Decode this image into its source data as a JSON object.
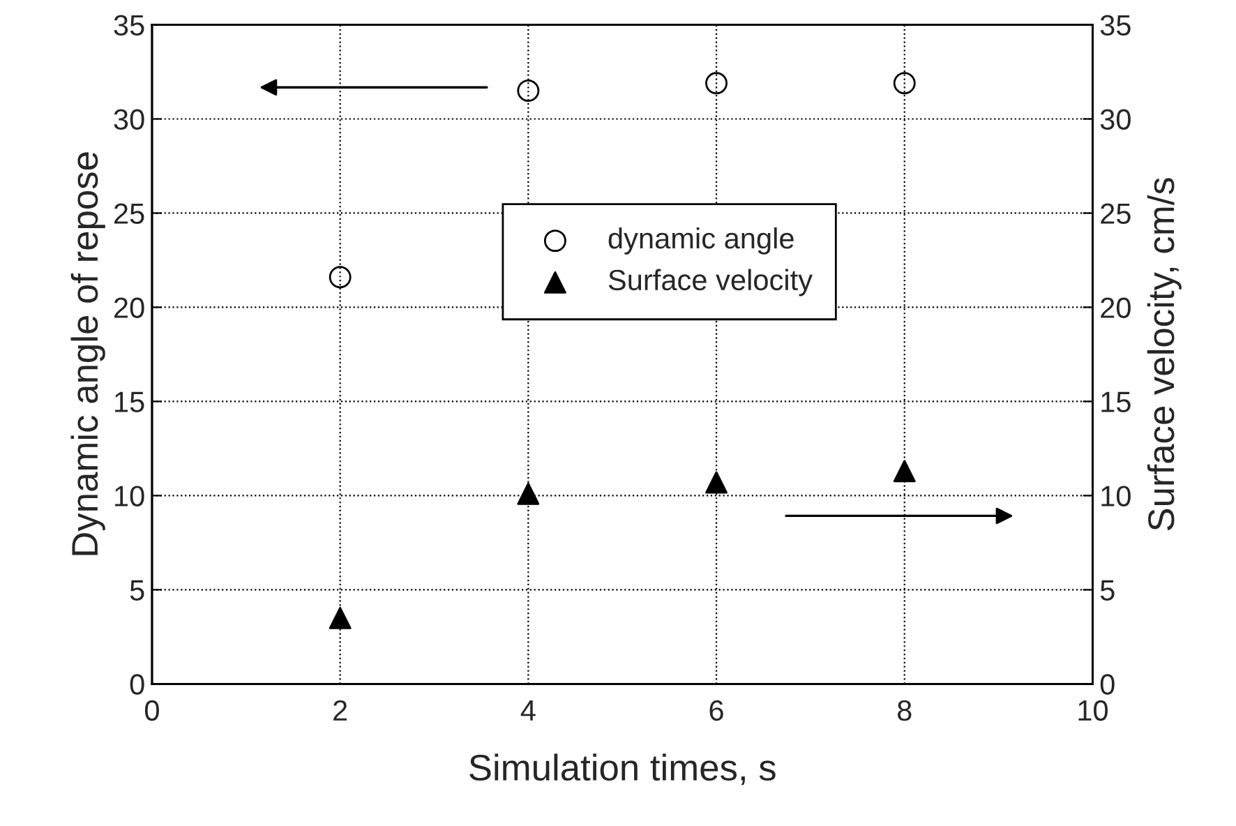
{
  "chart_data": {
    "type": "scatter",
    "xlabel": "Simulation times, s",
    "ylabel": "Dynamic angle of repose",
    "y2label": "Surface velocity, cm/s",
    "x": [
      2,
      4,
      6,
      8
    ],
    "series": [
      {
        "name": "dynamic angle",
        "color": "#000000",
        "values": [
          21.6,
          31.5,
          31.9,
          31.9
        ],
        "marker": "circle"
      },
      {
        "name": "Surface velocity",
        "color": "#000000",
        "values": [
          3.5,
          10.1,
          10.7,
          11.3
        ],
        "marker": "triangle",
        "axis": "y2"
      }
    ],
    "xlim": [
      0,
      10
    ],
    "xticks": [
      0,
      2,
      4,
      6,
      8,
      10
    ],
    "ylim": [
      0,
      35
    ],
    "yticks": [
      0,
      5,
      10,
      15,
      20,
      25,
      30,
      35
    ],
    "y2lim": [
      0,
      35
    ],
    "y2ticks": [
      0,
      5,
      10,
      15,
      20,
      25,
      30,
      35
    ],
    "grid": true,
    "legend": "top"
  }
}
